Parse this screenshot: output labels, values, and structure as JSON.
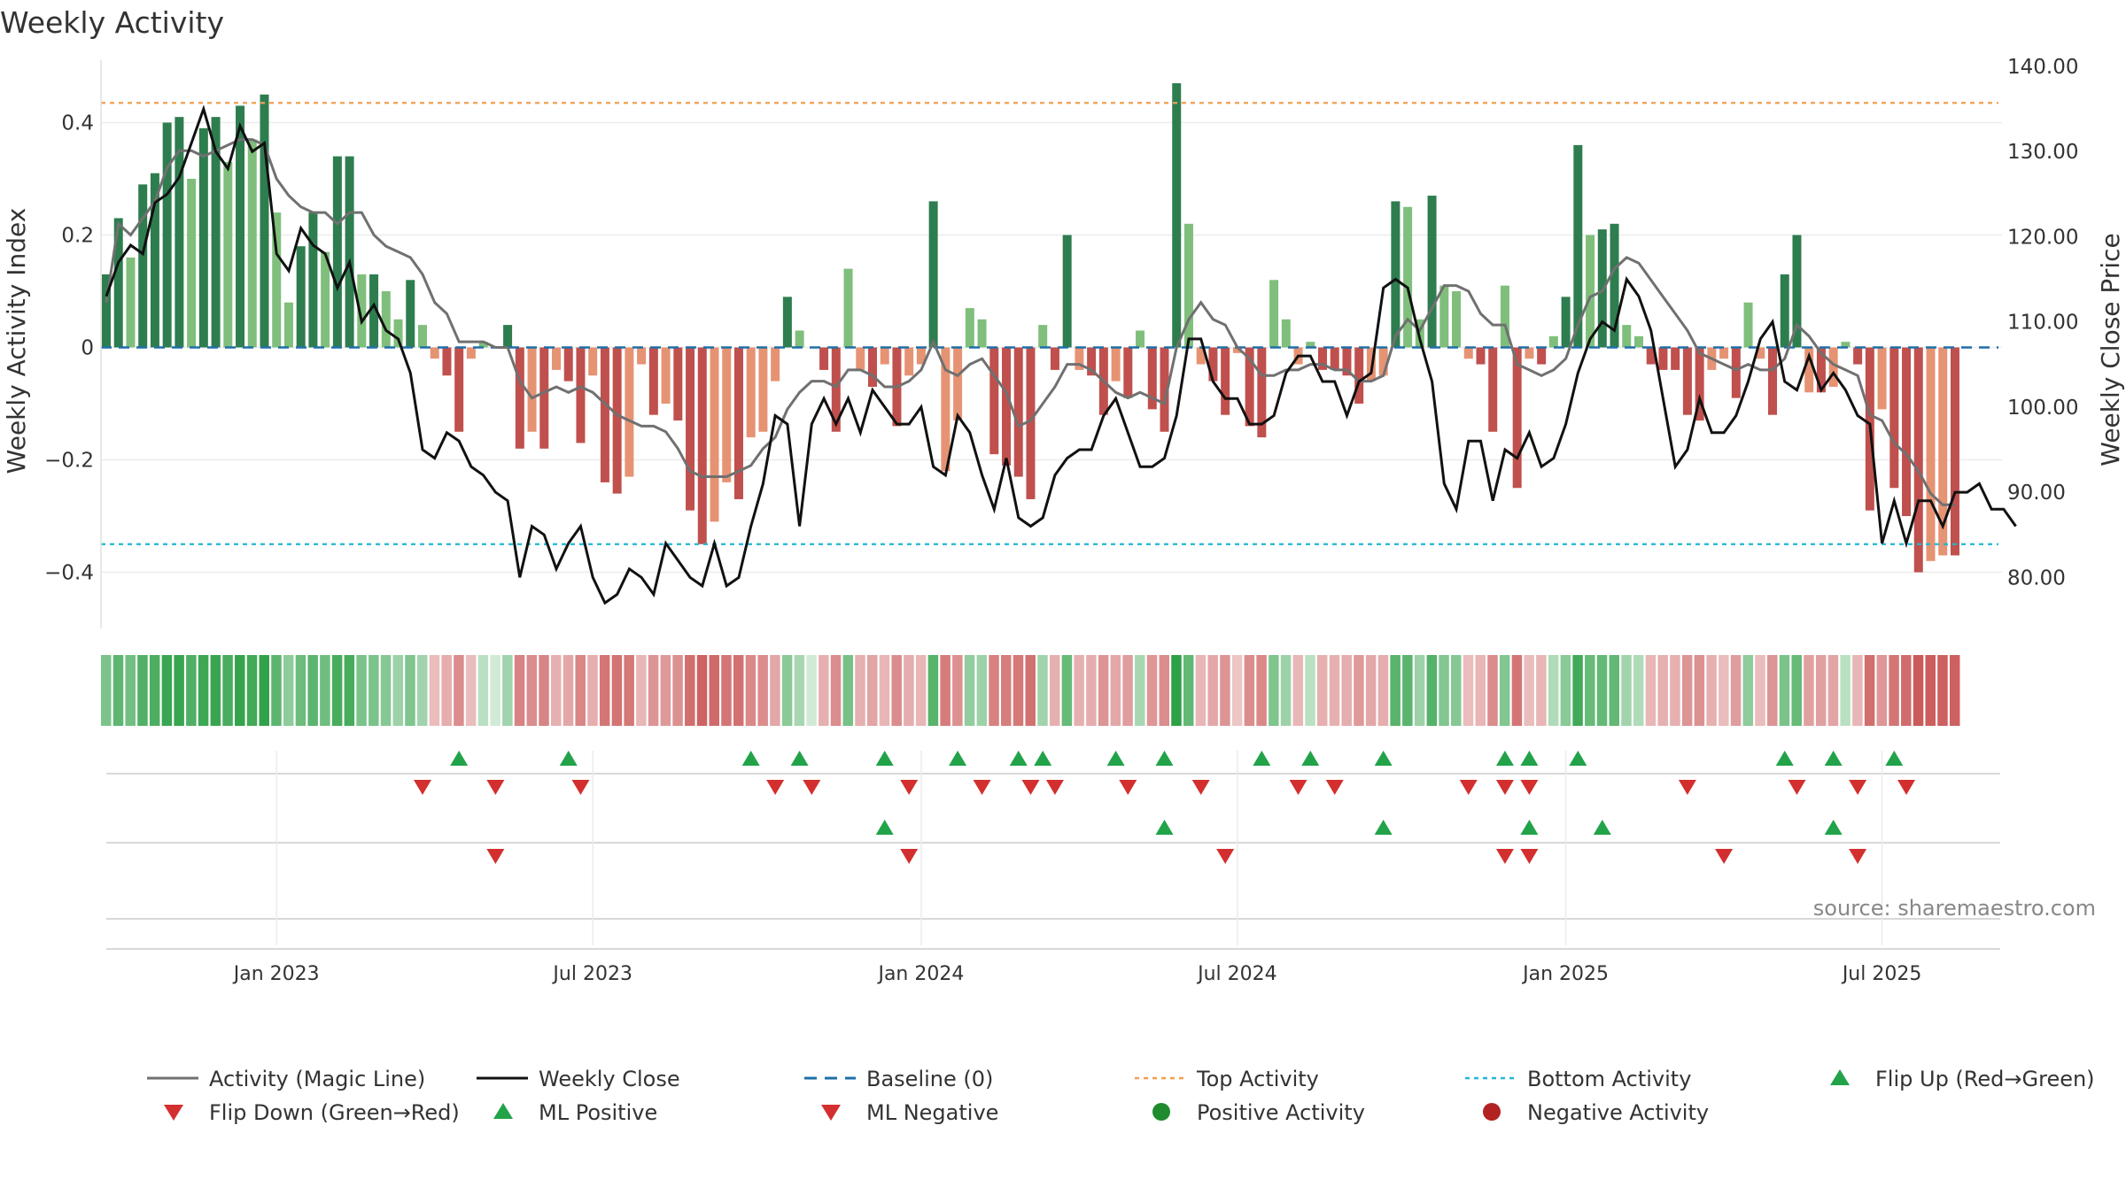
{
  "chart_data": {
    "type": "bar+line",
    "title": "Weekly Activity",
    "ylabel_left": "Weekly Activity Index",
    "ylabel_right": "Weekly Close Price",
    "ylim_left": [
      -0.5,
      0.5
    ],
    "ylim_right": [
      74.0,
      140.0
    ],
    "yticks_left": [
      0.4,
      0.2,
      0,
      -0.2,
      -0.4
    ],
    "yticks_left_labels": [
      "0.4",
      "0.2",
      "0",
      "−0.2",
      "−0.4"
    ],
    "yticks_right": [
      140,
      130,
      120,
      110,
      100,
      90,
      80
    ],
    "yticks_right_labels": [
      "140.00",
      "130.00",
      "120.00",
      "110.00",
      "100.00",
      "90.00",
      "80.00"
    ],
    "xticks": [
      {
        "week": 14,
        "label": "Jan 2023"
      },
      {
        "week": 40,
        "label": "Jul 2023"
      },
      {
        "week": 67,
        "label": "Jan 2024"
      },
      {
        "week": 93,
        "label": "Jul 2024"
      },
      {
        "week": 120,
        "label": "Jan 2025"
      },
      {
        "week": 146,
        "label": "Jul 2025"
      }
    ],
    "top_activity": 0.435,
    "bottom_activity": -0.35,
    "baseline": 0,
    "weeks": 158,
    "activity": [
      0.13,
      0.23,
      0.16,
      0.29,
      0.31,
      0.4,
      0.41,
      0.3,
      0.39,
      0.41,
      0.33,
      0.43,
      0.37,
      0.45,
      0.24,
      0.08,
      0.18,
      0.24,
      0.17,
      0.34,
      0.34,
      0.13,
      0.13,
      0.1,
      0.05,
      0.12,
      0.04,
      -0.02,
      -0.05,
      -0.15,
      -0.02,
      0.01,
      0.0,
      0.04,
      -0.18,
      -0.15,
      -0.18,
      -0.04,
      -0.06,
      -0.17,
      -0.05,
      -0.24,
      -0.26,
      -0.23,
      -0.03,
      -0.12,
      -0.1,
      -0.13,
      -0.29,
      -0.35,
      -0.31,
      -0.24,
      -0.27,
      -0.16,
      -0.15,
      -0.06,
      0.09,
      0.03,
      0.0,
      -0.04,
      -0.15,
      0.14,
      -0.04,
      -0.07,
      -0.03,
      -0.14,
      -0.05,
      -0.03,
      0.26,
      -0.22,
      -0.13,
      0.07,
      0.05,
      -0.19,
      -0.21,
      -0.23,
      -0.27,
      0.04,
      -0.04,
      0.2,
      -0.04,
      -0.05,
      -0.12,
      -0.06,
      -0.09,
      0.03,
      -0.11,
      -0.15,
      0.47,
      0.22,
      -0.03,
      -0.06,
      -0.12,
      -0.01,
      -0.14,
      -0.16,
      0.12,
      0.05,
      -0.03,
      0.01,
      -0.04,
      -0.04,
      -0.05,
      -0.1,
      -0.06,
      -0.05,
      0.26,
      0.25,
      0.05,
      0.27,
      0.11,
      0.1,
      -0.02,
      -0.03,
      -0.15,
      0.11,
      -0.25,
      -0.02,
      -0.03,
      0.02,
      0.09,
      0.36,
      0.2,
      0.21,
      0.22,
      0.04,
      0.02,
      -0.03,
      -0.04,
      -0.04,
      -0.12,
      -0.13,
      -0.04,
      -0.02,
      -0.09,
      0.08,
      -0.02,
      -0.12,
      0.13,
      0.2,
      -0.08,
      -0.08,
      -0.07,
      0.01,
      -0.03,
      -0.29,
      -0.11,
      -0.25,
      -0.3,
      -0.4,
      -0.38,
      -0.37,
      -0.37
    ],
    "magic_line": [
      0.08,
      0.22,
      0.2,
      0.23,
      0.26,
      0.32,
      0.35,
      0.35,
      0.34,
      0.35,
      0.36,
      0.37,
      0.37,
      0.36,
      0.3,
      0.27,
      0.25,
      0.24,
      0.24,
      0.22,
      0.24,
      0.24,
      0.2,
      0.18,
      0.17,
      0.16,
      0.13,
      0.08,
      0.06,
      0.01,
      0.01,
      0.01,
      0.0,
      0.0,
      -0.06,
      -0.09,
      -0.08,
      -0.07,
      -0.08,
      -0.07,
      -0.08,
      -0.1,
      -0.12,
      -0.13,
      -0.14,
      -0.14,
      -0.15,
      -0.18,
      -0.22,
      -0.23,
      -0.23,
      -0.23,
      -0.22,
      -0.21,
      -0.18,
      -0.16,
      -0.11,
      -0.08,
      -0.06,
      -0.06,
      -0.07,
      -0.04,
      -0.04,
      -0.05,
      -0.07,
      -0.07,
      -0.06,
      -0.04,
      0.01,
      -0.04,
      -0.05,
      -0.03,
      -0.02,
      -0.05,
      -0.08,
      -0.14,
      -0.13,
      -0.1,
      -0.07,
      -0.03,
      -0.03,
      -0.04,
      -0.06,
      -0.08,
      -0.09,
      -0.08,
      -0.09,
      -0.1,
      0.0,
      0.05,
      0.08,
      0.05,
      0.04,
      0.0,
      -0.02,
      -0.05,
      -0.05,
      -0.04,
      -0.04,
      -0.03,
      -0.03,
      -0.04,
      -0.04,
      -0.06,
      -0.06,
      -0.05,
      0.02,
      0.05,
      0.03,
      0.07,
      0.11,
      0.11,
      0.1,
      0.06,
      0.04,
      0.04,
      -0.03,
      -0.04,
      -0.05,
      -0.04,
      -0.02,
      0.04,
      0.09,
      0.1,
      0.14,
      0.16,
      0.15,
      0.12,
      0.09,
      0.06,
      0.03,
      -0.01,
      -0.02,
      -0.03,
      -0.04,
      -0.03,
      -0.04,
      -0.04,
      -0.02,
      0.04,
      0.02,
      -0.01,
      -0.03,
      -0.04,
      -0.05,
      -0.12,
      -0.13,
      -0.17,
      -0.19,
      -0.22,
      -0.26,
      -0.28,
      -0.28
    ],
    "weekly_close": [
      113,
      117,
      119,
      118,
      124,
      125,
      127,
      131,
      135,
      130,
      128,
      133,
      130,
      131,
      118,
      116,
      121,
      119,
      118,
      114,
      117,
      110,
      112,
      109,
      108,
      104,
      95,
      94,
      97,
      96,
      93,
      92,
      90,
      89,
      80,
      86,
      85,
      81,
      84,
      86,
      80,
      77,
      78,
      81,
      80,
      78,
      84,
      82,
      80,
      79,
      84,
      79,
      80,
      86,
      91,
      99,
      98,
      86,
      98,
      101,
      98,
      101,
      97,
      102,
      100,
      98,
      98,
      100,
      93,
      92,
      99,
      97,
      92,
      88,
      94,
      87,
      86,
      87,
      92,
      94,
      95,
      95,
      99,
      101,
      97,
      93,
      93,
      94,
      99,
      108,
      108,
      103,
      101,
      101,
      98,
      98,
      99,
      104,
      106,
      106,
      103,
      103,
      99,
      103,
      104,
      114,
      115,
      114,
      108,
      103,
      91,
      88,
      96,
      96,
      89,
      95,
      94,
      97,
      93,
      94,
      98,
      104,
      108,
      110,
      109,
      115,
      113,
      109,
      101,
      93,
      95,
      101,
      97,
      97,
      99,
      103,
      108,
      110,
      103,
      102,
      106,
      102,
      104,
      102,
      99,
      98,
      84,
      89,
      84,
      89,
      89,
      86,
      90,
      90,
      91,
      88,
      88,
      86
    ],
    "zone_colors": {
      "positive": "#2e7d4f",
      "positive_light": "#7fbf7b",
      "negative": "#c0504d",
      "negative_light": "#e69373"
    },
    "flip_up_weeks": [
      29,
      38,
      53,
      57,
      64,
      70,
      75,
      77,
      83,
      87,
      95,
      99,
      105,
      115,
      117,
      121,
      138,
      142,
      147
    ],
    "flip_down_weeks": [
      26,
      32,
      39,
      55,
      58,
      66,
      72,
      76,
      78,
      84,
      90,
      98,
      101,
      112,
      115,
      117,
      130,
      139,
      144,
      148
    ],
    "ml_positive_weeks": [
      64,
      87,
      105,
      117,
      123,
      142
    ],
    "ml_negative_weeks": [
      32,
      66,
      92,
      115,
      117,
      133,
      144
    ],
    "source": "source: sharemaestro.com",
    "legend": [
      {
        "label": "Activity (Magic Line)",
        "color": "#707070",
        "kind": "line"
      },
      {
        "label": "Weekly Close",
        "color": "#111111",
        "kind": "line"
      },
      {
        "label": "Baseline (0)",
        "color": "#1f6fa8",
        "kind": "dash"
      },
      {
        "label": "Top Activity",
        "color": "#f0a050",
        "kind": "dot"
      },
      {
        "label": "Bottom Activity",
        "color": "#22b6d4",
        "kind": "dot"
      },
      {
        "label": "Flip Up (Red→Green)",
        "color": "#22a34a",
        "kind": "tri-up"
      },
      {
        "label": "Flip Down (Green→Red)",
        "color": "#d32f2f",
        "kind": "tri-down"
      },
      {
        "label": "ML Positive",
        "color": "#22a34a",
        "kind": "tri-up"
      },
      {
        "label": "ML Negative",
        "color": "#d32f2f",
        "kind": "tri-down"
      },
      {
        "label": "Positive Activity",
        "color": "#1f8a2e",
        "kind": "circle"
      },
      {
        "label": "Negative Activity",
        "color": "#b22222",
        "kind": "circle"
      }
    ]
  }
}
